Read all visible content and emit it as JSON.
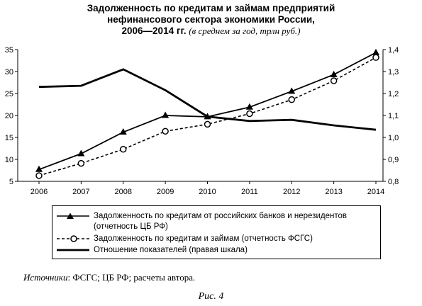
{
  "title": {
    "line1": "Задолженность по кредитам и займам предприятий",
    "line2": "нефинансового сектора экономики России,",
    "line3": "2006—2014 гг.",
    "units": "(в среднем за год, трлн руб.)"
  },
  "chart_data": {
    "type": "line",
    "x": [
      "2006",
      "2007",
      "2008",
      "2009",
      "2010",
      "2011",
      "2012",
      "2013",
      "2014"
    ],
    "left_axis": {
      "ylim": [
        5,
        35
      ],
      "ticks": [
        "5",
        "10",
        "15",
        "20",
        "25",
        "30",
        "35"
      ]
    },
    "right_axis": {
      "ylim": [
        0.8,
        1.4
      ],
      "ticks": [
        "0,8",
        "0,9",
        "1,0",
        "1,1",
        "1,2",
        "1,3",
        "1,4"
      ]
    },
    "series": [
      {
        "name": "Задолженность по кредитам от российских банков и нерезидентов (отчетность ЦБ РФ)",
        "axis": "left",
        "style": "solid",
        "marker": "triangle",
        "values": [
          7.7,
          11.3,
          16.2,
          20.0,
          19.7,
          21.9,
          25.5,
          29.3,
          34.3
        ]
      },
      {
        "name": "Задолженность по кредитам и займам (отчетность ФСГС)",
        "axis": "left",
        "style": "dashed",
        "marker": "circle",
        "values": [
          6.3,
          9.1,
          12.3,
          16.4,
          18.0,
          20.4,
          23.6,
          27.9,
          33.2
        ]
      },
      {
        "name": "Отношение показателей (правая шкала)",
        "axis": "right",
        "style": "solid-thick",
        "marker": "none",
        "values": [
          1.23,
          1.235,
          1.31,
          1.215,
          1.095,
          1.075,
          1.08,
          1.055,
          1.035
        ]
      }
    ],
    "grid": false,
    "legend_placement": "bottom"
  },
  "source": {
    "label": "Источники",
    "text": ": ФСГС; ЦБ РФ; расчеты автора."
  },
  "caption": "Рис. 4"
}
